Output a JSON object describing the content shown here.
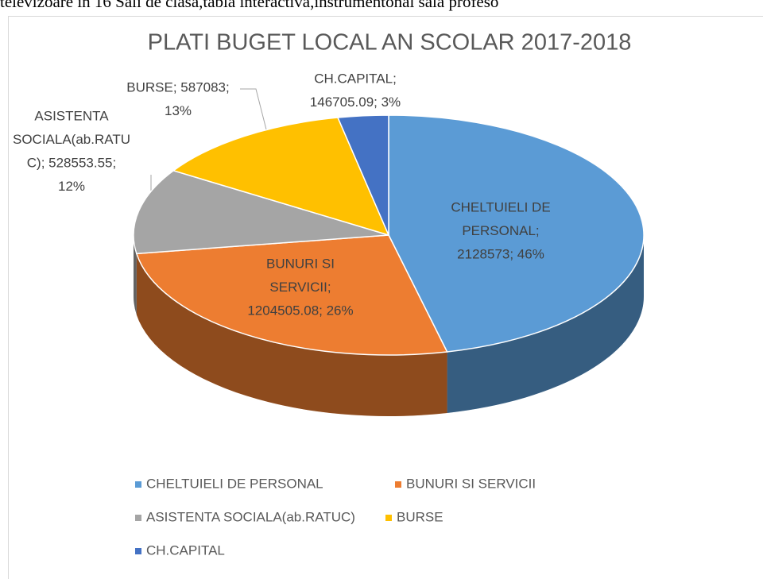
{
  "document": {
    "top_line": "televizoare in 16 Sali de clasa,tabla interactiva,instrumentonal sala profeso"
  },
  "chart_data": {
    "type": "pie",
    "title": "PLATI BUGET LOCAL AN SCOLAR 2017-2018",
    "categories": [
      "CHELTUIELI DE PERSONAL",
      "BUNURI SI SERVICII",
      "ASISTENTA SOCIALA(ab.RATUC)",
      "BURSE",
      "CH.CAPITAL"
    ],
    "values": [
      2128573,
      1204505.08,
      528553.55,
      587083,
      146705.09
    ],
    "value_labels": [
      [
        "CHELTUIELI DE",
        "PERSONAL;",
        "2128573; 46%"
      ],
      [
        "BUNURI SI",
        "SERVICII;",
        "1204505.08; 26%"
      ],
      [
        "ASISTENTA",
        "SOCIALA(ab.RATU",
        "C); 528553.55;",
        "12%"
      ],
      [
        "BURSE; 587083;",
        "13%"
      ],
      [
        "CH.CAPITAL;",
        "146705.09; 3%"
      ]
    ],
    "colors": [
      "#5b9bd5",
      "#ed7d31",
      "#a5a5a5",
      "#ffc000",
      "#4472c4"
    ],
    "legend": "bottom"
  }
}
